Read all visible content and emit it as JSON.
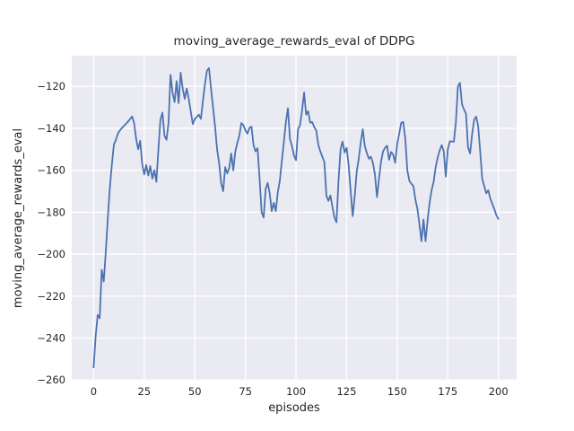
{
  "chart_data": {
    "type": "line",
    "title": "moving_average_rewards_eval of DDPG",
    "xlabel": "episodes",
    "ylabel": "moving_average_rewards_eval",
    "x_ticks": [
      0,
      25,
      50,
      75,
      100,
      125,
      150,
      175,
      200
    ],
    "y_ticks": [
      -260,
      -240,
      -220,
      -200,
      -180,
      -160,
      -140,
      -120
    ],
    "xlim": [
      -10.8,
      209.1
    ],
    "ylim": [
      -260.4,
      -105.4
    ],
    "grid": true,
    "legend": false,
    "colors": {
      "line": "#4c72b0",
      "plot_background": "#eaeaf2",
      "grid": "#ffffff",
      "figure_background": "#ffffff",
      "text": "#262626"
    },
    "x_start": 0,
    "x_step": 1,
    "values": [
      -254,
      -239,
      -229,
      -230.5,
      -207.5,
      -213,
      -199,
      -183,
      -168.5,
      -157.5,
      -147.8,
      -145.5,
      -142.5,
      -141,
      -139.8,
      -138.8,
      -137.8,
      -136.8,
      -135.6,
      -134.3,
      -137.5,
      -145,
      -150,
      -146,
      -157,
      -162,
      -157.5,
      -162.5,
      -158,
      -164,
      -160,
      -165.5,
      -150,
      -136,
      -132.5,
      -143.5,
      -145.5,
      -137.5,
      -114.5,
      -123,
      -127.5,
      -117.5,
      -128,
      -113.5,
      -121,
      -126,
      -121,
      -126,
      -132,
      -138,
      -135.5,
      -134.5,
      -133.5,
      -135.5,
      -127,
      -119,
      -112.5,
      -111.3,
      -121,
      -130,
      -139,
      -150,
      -156.5,
      -166,
      -170,
      -158.5,
      -161.5,
      -159,
      -152,
      -160,
      -151,
      -147,
      -143.5,
      -137.5,
      -138.5,
      -141,
      -142.5,
      -139.8,
      -139.2,
      -148,
      -151,
      -149.5,
      -164,
      -180,
      -182.5,
      -169,
      -166,
      -171,
      -179.5,
      -175.5,
      -179.5,
      -170.5,
      -165,
      -155.5,
      -146.5,
      -137,
      -130.4,
      -145,
      -148.5,
      -153,
      -155.2,
      -140.5,
      -138.4,
      -131.5,
      -122.9,
      -133.5,
      -131.8,
      -137.3,
      -137,
      -139.4,
      -141,
      -147.8,
      -151,
      -153.5,
      -156,
      -172,
      -174.6,
      -172,
      -177.5,
      -182.5,
      -184.8,
      -165,
      -150,
      -146.3,
      -151.5,
      -149.3,
      -157.5,
      -170,
      -181.9,
      -172.5,
      -160.5,
      -154.5,
      -146.5,
      -140.4,
      -148.5,
      -151.8,
      -154.5,
      -153.5,
      -156.5,
      -162,
      -172.8,
      -164,
      -156,
      -151,
      -149.3,
      -148.3,
      -155,
      -151.3,
      -152.5,
      -156.4,
      -147.5,
      -142.5,
      -137.3,
      -137,
      -145,
      -160,
      -165,
      -166.5,
      -167.5,
      -174,
      -178.5,
      -186,
      -193.8,
      -183.5,
      -193.8,
      -184,
      -175.5,
      -169.5,
      -165.5,
      -158.5,
      -154,
      -150.5,
      -148,
      -151,
      -163,
      -150,
      -146.2,
      -146.3,
      -146.4,
      -137,
      -120,
      -118.3,
      -128.5,
      -131,
      -133,
      -149,
      -152,
      -143,
      -136,
      -134.4,
      -139,
      -151,
      -164,
      -167.5,
      -171,
      -169.5,
      -173.5,
      -176,
      -178.5,
      -181.5,
      -183.2
    ]
  }
}
